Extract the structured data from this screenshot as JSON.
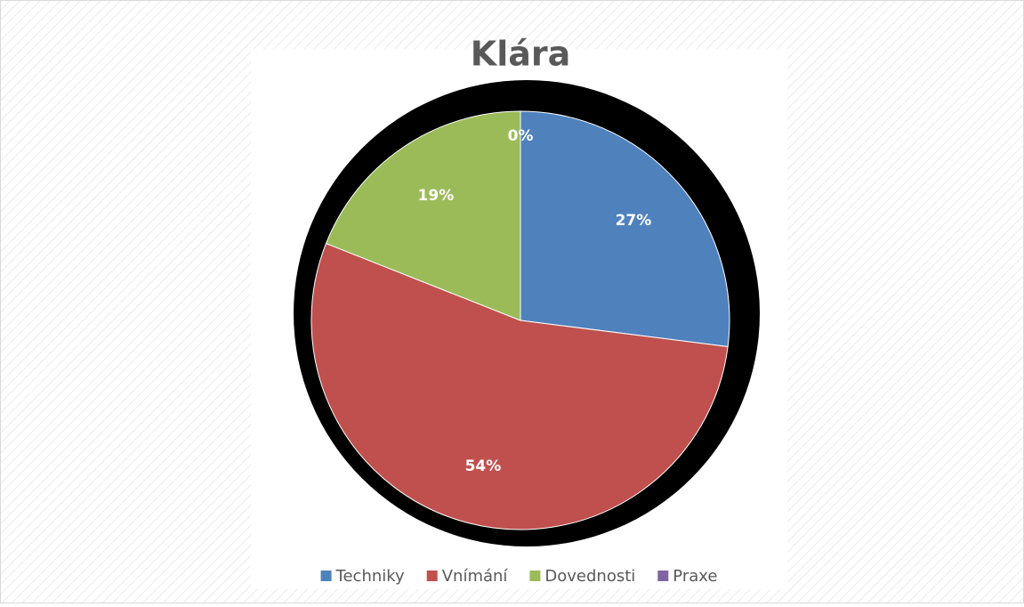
{
  "chart_data": {
    "type": "pie",
    "title": "Klára",
    "categories": [
      "Techniky",
      "Vnímání",
      "Dovednosti",
      "Praxe"
    ],
    "values": [
      27,
      54,
      19,
      0
    ],
    "value_labels": [
      "27%",
      "54%",
      "19%",
      "0%"
    ],
    "colors": [
      "#4f81bd",
      "#c0504d",
      "#9bbb59",
      "#8064a2"
    ],
    "legend": "bottom"
  }
}
